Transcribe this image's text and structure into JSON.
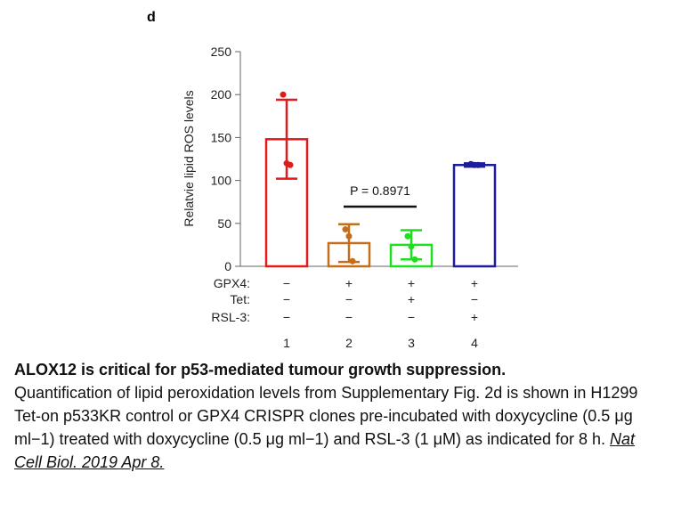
{
  "panel_label": "d",
  "chart_data": {
    "type": "bar",
    "ylabel": "Relatvie lipid ROS levels",
    "ylim": [
      0,
      250
    ],
    "yticks": [
      "0",
      "50",
      "100",
      "150",
      "200",
      "250"
    ],
    "categories": [
      "1",
      "2",
      "3",
      "4"
    ],
    "values": [
      148,
      27,
      25,
      118
    ],
    "error": [
      46,
      22,
      17,
      2
    ],
    "points": [
      [
        200,
        120,
        118
      ],
      [
        43,
        35,
        6
      ],
      [
        35,
        23,
        8
      ],
      [
        119,
        118,
        118
      ]
    ],
    "colors": [
      "#e31a1c",
      "#c46e1a",
      "#1fe01f",
      "#1c1c9c"
    ],
    "conditions": [
      {
        "name": "GPX4:",
        "values": [
          "−",
          "+",
          "+",
          "+"
        ]
      },
      {
        "name": "Tet:",
        "values": [
          "−",
          "−",
          "+",
          "−"
        ]
      },
      {
        "name": "RSL-3:",
        "values": [
          "−",
          "−",
          "−",
          "+"
        ]
      }
    ],
    "annotation": {
      "text": "P = 0.8971",
      "between": [
        2,
        3
      ]
    },
    "grid": false
  },
  "caption": {
    "title": "ALOX12 is critical for p53-mediated tumour growth suppression.",
    "body": "Quantification of lipid peroxidation levels from Supplementary Fig. 2d is shown in H1299 Tet-on p533KR control or GPX4 CRISPR clones pre-incubated with doxycycline (0.5 μg ml−1) treated with doxycycline (0.5 μg ml−1) and RSL-3 (1 μM) as indicated for 8 h.",
    "citation": "Nat Cell Biol. 2019 Apr 8."
  }
}
